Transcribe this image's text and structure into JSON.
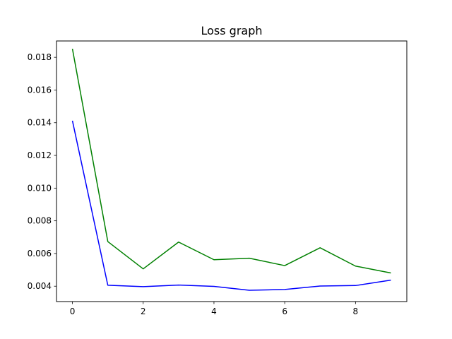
{
  "chart_data": {
    "type": "line",
    "title": "Loss graph",
    "xlabel": "",
    "ylabel": "",
    "x": [
      0,
      1,
      2,
      3,
      4,
      5,
      6,
      7,
      8,
      9
    ],
    "xlim": [
      -0.45,
      9.45
    ],
    "ylim": [
      0.00306,
      0.019
    ],
    "xticks": [
      0,
      2,
      4,
      6,
      8
    ],
    "xtick_labels": [
      "0",
      "2",
      "4",
      "6",
      "8"
    ],
    "yticks": [
      0.004,
      0.006,
      0.008,
      0.01,
      0.012,
      0.014,
      0.016,
      0.018
    ],
    "ytick_labels": [
      "0.004",
      "0.006",
      "0.008",
      "0.010",
      "0.012",
      "0.014",
      "0.016",
      "0.018"
    ],
    "grid": false,
    "series": [
      {
        "color": "#0000ff",
        "values": [
          0.01412,
          0.00406,
          0.00397,
          0.00407,
          0.00399,
          0.00375,
          0.0038,
          0.00401,
          0.00404,
          0.00437
        ]
      },
      {
        "color": "#008000",
        "values": [
          0.01852,
          0.00673,
          0.00506,
          0.0067,
          0.00562,
          0.00571,
          0.00526,
          0.00635,
          0.00523,
          0.00481
        ]
      }
    ]
  }
}
